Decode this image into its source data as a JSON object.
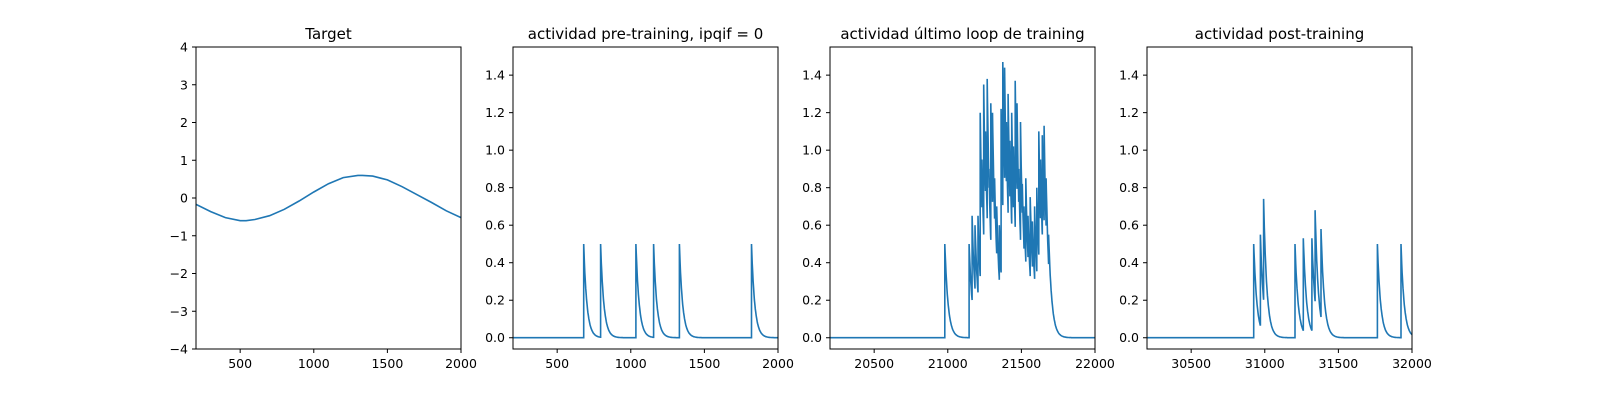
{
  "figure": {
    "background": "#ffffff",
    "line_color": "#1f77b4"
  },
  "chart_data": [
    {
      "type": "line",
      "title": "Target",
      "xlabel": "",
      "ylabel": "",
      "xlim": [
        200,
        2000
      ],
      "ylim": [
        -4,
        4
      ],
      "xticks": [
        500,
        1000,
        1500,
        2000
      ],
      "yticks": [
        -4,
        -3,
        -2,
        -1,
        0,
        1,
        2,
        3,
        4
      ],
      "grid": false,
      "series": [
        {
          "x": [
            200,
            300,
            400,
            500,
            540,
            600,
            700,
            800,
            900,
            1000,
            1100,
            1200,
            1300,
            1330,
            1400,
            1500,
            1600,
            1700,
            1800,
            1900,
            2000
          ],
          "y": [
            -0.17,
            -0.36,
            -0.52,
            -0.6,
            -0.6,
            -0.57,
            -0.47,
            -0.3,
            -0.08,
            0.16,
            0.38,
            0.54,
            0.6,
            0.6,
            0.58,
            0.48,
            0.3,
            0.09,
            -0.12,
            -0.34,
            -0.52
          ]
        }
      ]
    },
    {
      "type": "line",
      "title": "actividad pre-training, ipqif = 0",
      "xlabel": "",
      "ylabel": "",
      "xlim": [
        200,
        2000
      ],
      "ylim": [
        -0.06,
        1.55
      ],
      "xticks": [
        500,
        1000,
        1500,
        2000
      ],
      "yticks": [
        0.0,
        0.2,
        0.4,
        0.6,
        0.8,
        1.0,
        1.2,
        1.4
      ],
      "grid": false,
      "spikes": [
        {
          "t": 680,
          "h": 0.5
        },
        {
          "t": 795,
          "h": 0.5
        },
        {
          "t": 1035,
          "h": 0.5
        },
        {
          "t": 1155,
          "h": 0.5
        },
        {
          "t": 1330,
          "h": 0.5
        },
        {
          "t": 1820,
          "h": 0.5
        }
      ]
    },
    {
      "type": "line",
      "title": "actividad último loop de training",
      "xlabel": "",
      "ylabel": "",
      "xlim": [
        20200,
        22000
      ],
      "ylim": [
        -0.06,
        1.55
      ],
      "xticks": [
        20500,
        21000,
        21500,
        22000
      ],
      "yticks": [
        0.0,
        0.2,
        0.4,
        0.6,
        0.8,
        1.0,
        1.2,
        1.4
      ],
      "grid": false,
      "spikes": [
        {
          "t": 20980,
          "h": 0.5
        },
        {
          "t": 21145,
          "h": 0.5
        },
        {
          "t": 21165,
          "h": 0.65
        },
        {
          "t": 21185,
          "h": 0.6
        },
        {
          "t": 21205,
          "h": 0.65
        },
        {
          "t": 21220,
          "h": 1.2
        },
        {
          "t": 21232,
          "h": 0.95
        },
        {
          "t": 21244,
          "h": 1.35
        },
        {
          "t": 21256,
          "h": 1.1
        },
        {
          "t": 21268,
          "h": 1.38
        },
        {
          "t": 21280,
          "h": 0.9
        },
        {
          "t": 21292,
          "h": 1.25
        },
        {
          "t": 21304,
          "h": 1.2
        },
        {
          "t": 21318,
          "h": 0.85
        },
        {
          "t": 21332,
          "h": 0.7
        },
        {
          "t": 21350,
          "h": 0.6
        },
        {
          "t": 21362,
          "h": 1.22
        },
        {
          "t": 21374,
          "h": 1.47
        },
        {
          "t": 21386,
          "h": 1.44
        },
        {
          "t": 21398,
          "h": 1.15
        },
        {
          "t": 21410,
          "h": 1.3
        },
        {
          "t": 21422,
          "h": 1.05
        },
        {
          "t": 21434,
          "h": 1.2
        },
        {
          "t": 21446,
          "h": 1.02
        },
        {
          "t": 21458,
          "h": 1.37
        },
        {
          "t": 21470,
          "h": 1.25
        },
        {
          "t": 21482,
          "h": 0.9
        },
        {
          "t": 21494,
          "h": 1.15
        },
        {
          "t": 21506,
          "h": 0.82
        },
        {
          "t": 21518,
          "h": 0.7
        },
        {
          "t": 21530,
          "h": 0.85
        },
        {
          "t": 21545,
          "h": 0.65
        },
        {
          "t": 21560,
          "h": 0.75
        },
        {
          "t": 21575,
          "h": 0.62
        },
        {
          "t": 21590,
          "h": 0.7
        },
        {
          "t": 21605,
          "h": 0.8
        },
        {
          "t": 21618,
          "h": 1.1
        },
        {
          "t": 21630,
          "h": 0.95
        },
        {
          "t": 21642,
          "h": 1.08
        },
        {
          "t": 21654,
          "h": 1.13
        },
        {
          "t": 21668,
          "h": 0.85
        },
        {
          "t": 21685,
          "h": 0.55
        }
      ]
    },
    {
      "type": "line",
      "title": "actividad post-training",
      "xlabel": "",
      "ylabel": "",
      "xlim": [
        30200,
        32000
      ],
      "ylim": [
        -0.06,
        1.55
      ],
      "xticks": [
        30500,
        31000,
        31500,
        32000
      ],
      "yticks": [
        0.0,
        0.2,
        0.4,
        0.6,
        0.8,
        1.0,
        1.2,
        1.4
      ],
      "grid": false,
      "spikes": [
        {
          "t": 30925,
          "h": 0.5
        },
        {
          "t": 30970,
          "h": 0.55
        },
        {
          "t": 30992,
          "h": 0.74
        },
        {
          "t": 31205,
          "h": 0.5
        },
        {
          "t": 31262,
          "h": 0.53
        },
        {
          "t": 31320,
          "h": 0.53
        },
        {
          "t": 31342,
          "h": 0.68
        },
        {
          "t": 31382,
          "h": 0.58
        },
        {
          "t": 31765,
          "h": 0.5
        },
        {
          "t": 31925,
          "h": 0.5
        }
      ]
    }
  ]
}
